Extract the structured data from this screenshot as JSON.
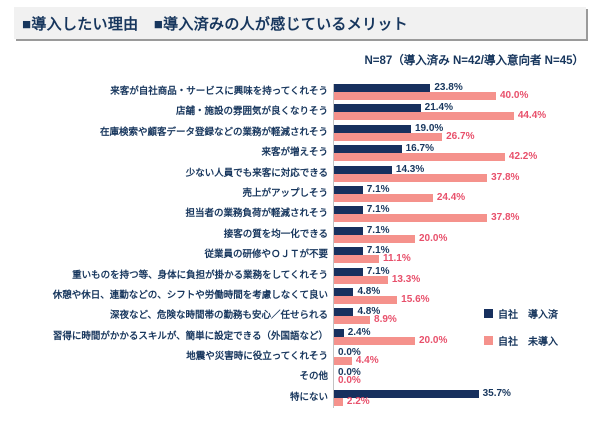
{
  "title": "■導入したい理由　■導入済みの人が感じているメリット",
  "subtitle": "N=87（導入済み N=42/導入意向者 N=45）",
  "colors": {
    "navy": "#17305e",
    "pink": "#f5928c",
    "navy_text": "#17365d",
    "pink_text": "#e8506b",
    "title_bg": "#f1f1f1"
  },
  "legend": {
    "items": [
      {
        "label": "自社　導入済",
        "color": "#17305e"
      },
      {
        "label": "自社　未導入",
        "color": "#f5928c"
      }
    ]
  },
  "chart_data": {
    "type": "bar",
    "orientation": "horizontal",
    "title": "導入したい理由 / 導入済みの人が感じているメリット",
    "xlabel": "",
    "ylabel": "",
    "xlim": [
      0,
      50
    ],
    "grid": false,
    "legend_position": "right",
    "value_suffix": "%",
    "categories": [
      "来客が自社商品・サービスに興味を持ってくれそう",
      "店舗・施設の雰囲気が良くなりそう",
      "在庫検索や顧客データ登録などの業務が軽減されそう",
      "来客が増えそう",
      "少ない人員でも来客に対応できる",
      "売上がアップしそう",
      "担当者の業務負荷が軽減されそう",
      "接客の質を均一化できる",
      "従業員の研修やＯＪＴが不要",
      "重いものを持つ等、身体に負担が掛かる業務をしてくれそう",
      "休憩や休日、連勤などの、シフトや労働時間を考慮しなくて良い",
      "深夜など、危険な時間帯の勤務も安心／任せられる",
      "習得に時間がかかるスキルが、簡単に設定できる（外国語など）",
      "地震や災害時に役立ってくれそう",
      "その他",
      "特にない"
    ],
    "series": [
      {
        "name": "自社 導入済",
        "color": "#17305e",
        "value_color": "#17365d",
        "values": [
          23.8,
          21.4,
          19.0,
          16.7,
          14.3,
          7.1,
          7.1,
          7.1,
          7.1,
          7.1,
          4.8,
          4.8,
          2.4,
          0.0,
          0.0,
          35.7
        ]
      },
      {
        "name": "自社 未導入",
        "color": "#f5928c",
        "value_color": "#e8506b",
        "values": [
          40.0,
          44.4,
          26.7,
          42.2,
          37.8,
          24.4,
          37.8,
          20.0,
          11.1,
          13.3,
          15.6,
          8.9,
          20.0,
          4.4,
          0.0,
          2.2
        ]
      }
    ]
  }
}
